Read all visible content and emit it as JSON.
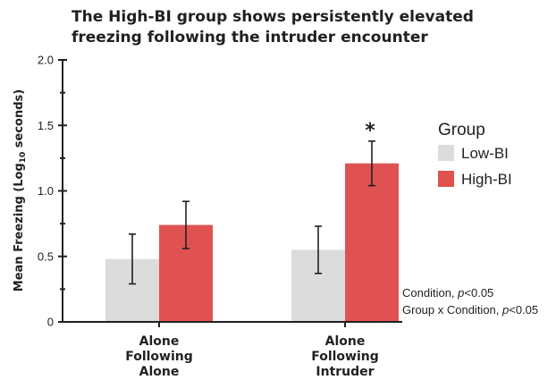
{
  "chart_data": {
    "type": "bar",
    "title": "The High-BI group shows persistently elevated freezing following the intruder encounter",
    "ylabel": "Mean Freezing (Log10 seconds)",
    "ylabel_parts": {
      "before": "Mean Freezing (Log",
      "sub": "10",
      "after": " seconds)"
    },
    "ylim": [
      0,
      2.0
    ],
    "yticks": [
      "0",
      "0.5",
      "1.0",
      "1.5",
      "2.0"
    ],
    "categories": [
      [
        "Alone",
        "Following",
        "Alone"
      ],
      [
        "Alone",
        "Following",
        "Intruder"
      ]
    ],
    "series": [
      {
        "name": "Low-BI",
        "color": "#dcdcdc",
        "values": [
          0.48,
          0.55
        ],
        "errors": [
          0.19,
          0.18
        ]
      },
      {
        "name": "High-BI",
        "color": "#e05252",
        "values": [
          0.74,
          1.21
        ],
        "errors": [
          0.18,
          0.17
        ]
      }
    ],
    "legend": {
      "title": "Group",
      "position": "right"
    },
    "significance": [
      {
        "category_index": 1,
        "label": "*"
      }
    ],
    "annotations": [
      "Condition, p<0.05",
      "Group x Condition, p<0.05"
    ]
  }
}
